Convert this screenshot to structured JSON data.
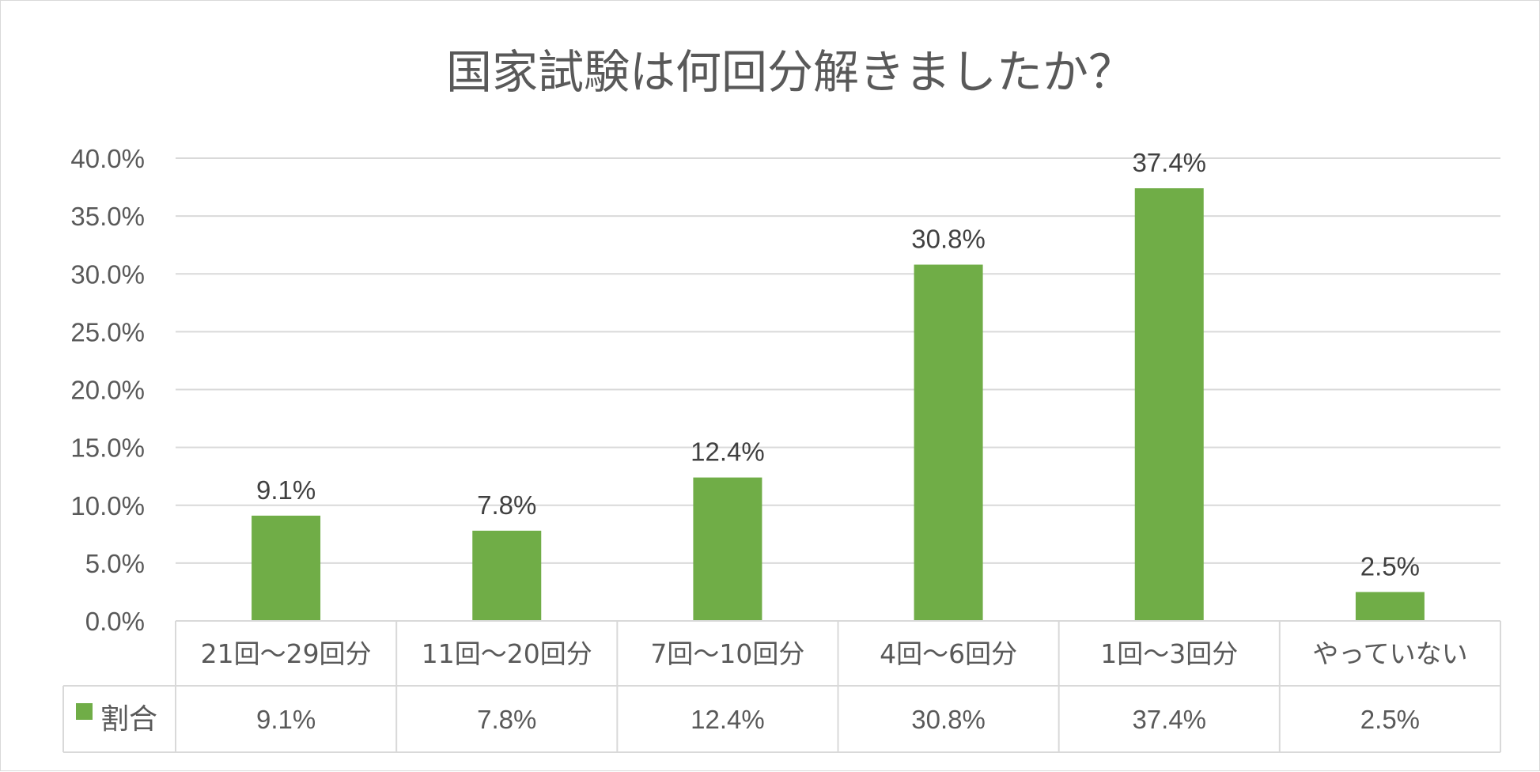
{
  "chart_data": {
    "type": "bar",
    "title": "国家試験は何回分解きましたか？",
    "categories": [
      "21回～29回分",
      "11回～20回分",
      "7回～10回分",
      "4回～6回分",
      "1回～3回分",
      "やっていない"
    ],
    "series": [
      {
        "name": "割合",
        "values": [
          9.1,
          7.8,
          12.4,
          30.8,
          37.4,
          2.5
        ],
        "labels": [
          "9.1%",
          "7.8%",
          "12.4%",
          "30.8%",
          "37.4%",
          "2.5%"
        ],
        "color": "#70ad47"
      }
    ],
    "ylim": [
      0,
      40
    ],
    "yticks": [
      "0.0%",
      "5.0%",
      "10.0%",
      "15.0%",
      "20.0%",
      "25.0%",
      "30.0%",
      "35.0%",
      "40.0%"
    ],
    "grid": true,
    "data_table": true,
    "legend": "data-table-left"
  },
  "colors": {
    "bar": "#70ad47",
    "grid": "#d9d9d9",
    "text": "#595959"
  }
}
